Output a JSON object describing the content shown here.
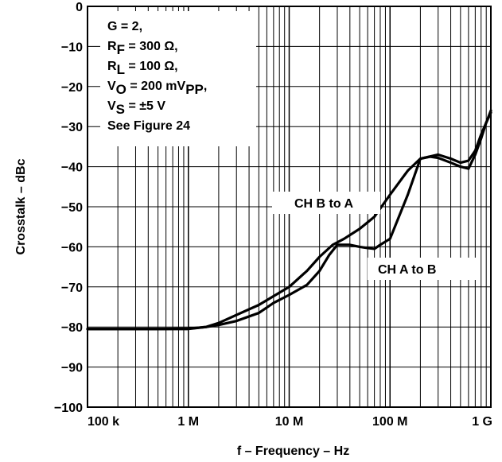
{
  "chart_data": {
    "type": "line",
    "xlabel": "f – Frequency – Hz",
    "ylabel": "Crosstalk – dBc",
    "xscale": "log",
    "xlim": [
      100000,
      1000000000
    ],
    "ylim": [
      -100,
      0
    ],
    "x_ticks": [
      100000,
      1000000,
      10000000,
      100000000,
      1000000000
    ],
    "x_tick_labels": [
      "100 k",
      "1 M",
      "10 M",
      "100 M",
      "1 G"
    ],
    "y_ticks": [
      0,
      -10,
      -20,
      -30,
      -40,
      -50,
      -60,
      -70,
      -80,
      -90,
      -100
    ],
    "y_tick_labels": [
      "0",
      "−10",
      "−20",
      "−30",
      "−40",
      "−50",
      "−60",
      "−70",
      "−80",
      "−90",
      "−100"
    ],
    "grid": true,
    "conditions": [
      {
        "main": "G = 2,",
        "sub": "",
        "rest": ""
      },
      {
        "main": "R",
        "sub": "F",
        "rest": " = 300 Ω,"
      },
      {
        "main": "R",
        "sub": "L",
        "rest": " = 100 Ω,"
      },
      {
        "main": "V",
        "sub": "O",
        "rest": " = 200 mV"
      },
      {
        "main": "V",
        "sub": "S",
        "rest": " = ±5 V"
      },
      {
        "main": "See Figure 24",
        "sub": "",
        "rest": ""
      }
    ],
    "conditions_vo_sub2": "PP",
    "conditions_vo_tail": ",",
    "series": [
      {
        "name": "CH B to A",
        "x": [
          100000,
          200000,
          500000,
          1000000,
          1500000,
          2000000,
          3000000,
          5000000,
          10000000,
          15000000,
          20000000,
          27000000,
          35000000,
          50000000,
          70000000,
          100000000,
          150000000,
          200000000,
          300000000,
          400000000,
          500000000,
          600000000,
          700000000,
          800000000,
          900000000,
          1000000000
        ],
        "y": [
          -80.5,
          -80.5,
          -80.5,
          -80.4,
          -80.0,
          -79.0,
          -77.0,
          -74.5,
          -70.0,
          -66.0,
          -62.5,
          -59.5,
          -58.0,
          -55.5,
          -52.5,
          -47.0,
          -41.0,
          -38.0,
          -37.0,
          -38.0,
          -39.0,
          -38.5,
          -36.0,
          -32.0,
          -29.0,
          -26.0
        ]
      },
      {
        "name": "CH A to B",
        "x": [
          100000,
          200000,
          500000,
          1000000,
          1500000,
          2000000,
          3000000,
          5000000,
          7000000,
          10000000,
          15000000,
          20000000,
          25000000,
          30000000,
          40000000,
          50000000,
          60000000,
          70000000,
          80000000,
          100000000,
          150000000,
          200000000,
          250000000,
          300000000,
          400000000,
          500000000,
          600000000,
          700000000,
          800000000,
          900000000,
          1000000000
        ],
        "y": [
          -80.5,
          -80.5,
          -80.5,
          -80.5,
          -80.0,
          -79.5,
          -78.5,
          -76.5,
          -74.0,
          -72.0,
          -69.5,
          -66.0,
          -62.0,
          -59.5,
          -59.5,
          -60.0,
          -60.3,
          -60.5,
          -59.5,
          -58.0,
          -47.0,
          -38.0,
          -37.5,
          -37.8,
          -39.0,
          -40.0,
          -40.5,
          -37.0,
          -33.0,
          -29.0,
          -26.5
        ]
      }
    ]
  }
}
